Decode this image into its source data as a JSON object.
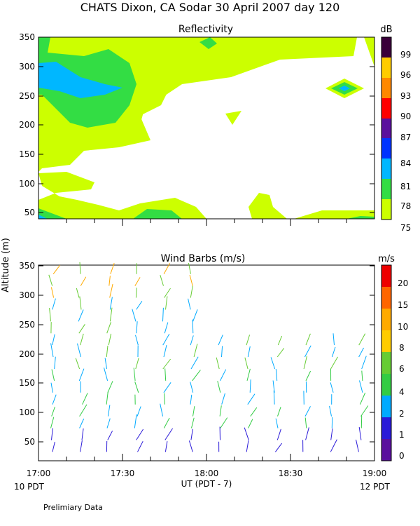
{
  "page": {
    "title": "CHATS Dixon, CA  Sodar  30 April 2007  day 120",
    "y_axis_label": "Altitude (m)",
    "x_axis_label": "UT  (PDT - 7)",
    "left_note": "10 PDT",
    "right_note": "12 PDT",
    "footer": "Prelimiary Data"
  },
  "chart_data": [
    {
      "type": "heatmap",
      "title": "Reflectivity",
      "ylabel": "Altitude (m)",
      "x_ticks": [
        "17:00",
        "17:30",
        "18:00",
        "18:30",
        "19:00"
      ],
      "y_ticks": [
        "50",
        "100",
        "150",
        "200",
        "250",
        "300",
        "350"
      ],
      "ylim": [
        30,
        355
      ],
      "colorbar": {
        "unit": "dB",
        "levels": [
          "75",
          "78",
          "81",
          "84",
          "87",
          "90",
          "93",
          "96",
          "99"
        ],
        "colors": [
          "#ccff00",
          "#33dd44",
          "#00b7ff",
          "#0033ff",
          "#5a109d",
          "#ff0000",
          "#ff8800",
          "#ffcc00",
          "#3a003a"
        ]
      },
      "contours": [
        {
          "level": 75,
          "description": "weak echo regions below 350 m and near surface"
        },
        {
          "level": 78,
          "description": "17:00-17:35 around 230-350 m, lower band near surface"
        },
        {
          "level": 81,
          "description": "17:00-17:25 around 260-300 m; small spot near 18:50, 260 m"
        }
      ]
    },
    {
      "type": "scatter",
      "title": "Wind Barbs (m/s)",
      "ylabel": "Altitude (m)",
      "xlabel": "UT  (PDT - 7)",
      "x_ticks": [
        "17:00",
        "17:30",
        "18:00",
        "18:30",
        "19:00"
      ],
      "y_ticks": [
        "50",
        "100",
        "150",
        "200",
        "250",
        "300",
        "350"
      ],
      "ylim": [
        25,
        355
      ],
      "colorbar": {
        "unit": "m/s",
        "levels": [
          "0",
          "1",
          "2",
          "4",
          "6",
          "8",
          "10",
          "15",
          "20"
        ],
        "colors": [
          "#5a109d",
          "#2a1ad8",
          "#00aaff",
          "#33cc44",
          "#66cc33",
          "#ffcc00",
          "#ffaa00",
          "#ff6600",
          "#ee0000"
        ]
      },
      "columns_minutes": [
        5,
        15,
        25,
        35,
        45,
        55,
        65,
        75,
        85,
        95,
        105,
        115
      ],
      "altitudes_m": [
        40,
        60,
        80,
        100,
        120,
        140,
        160,
        180,
        200,
        220,
        240,
        260,
        280,
        300,
        320,
        340
      ]
    }
  ]
}
